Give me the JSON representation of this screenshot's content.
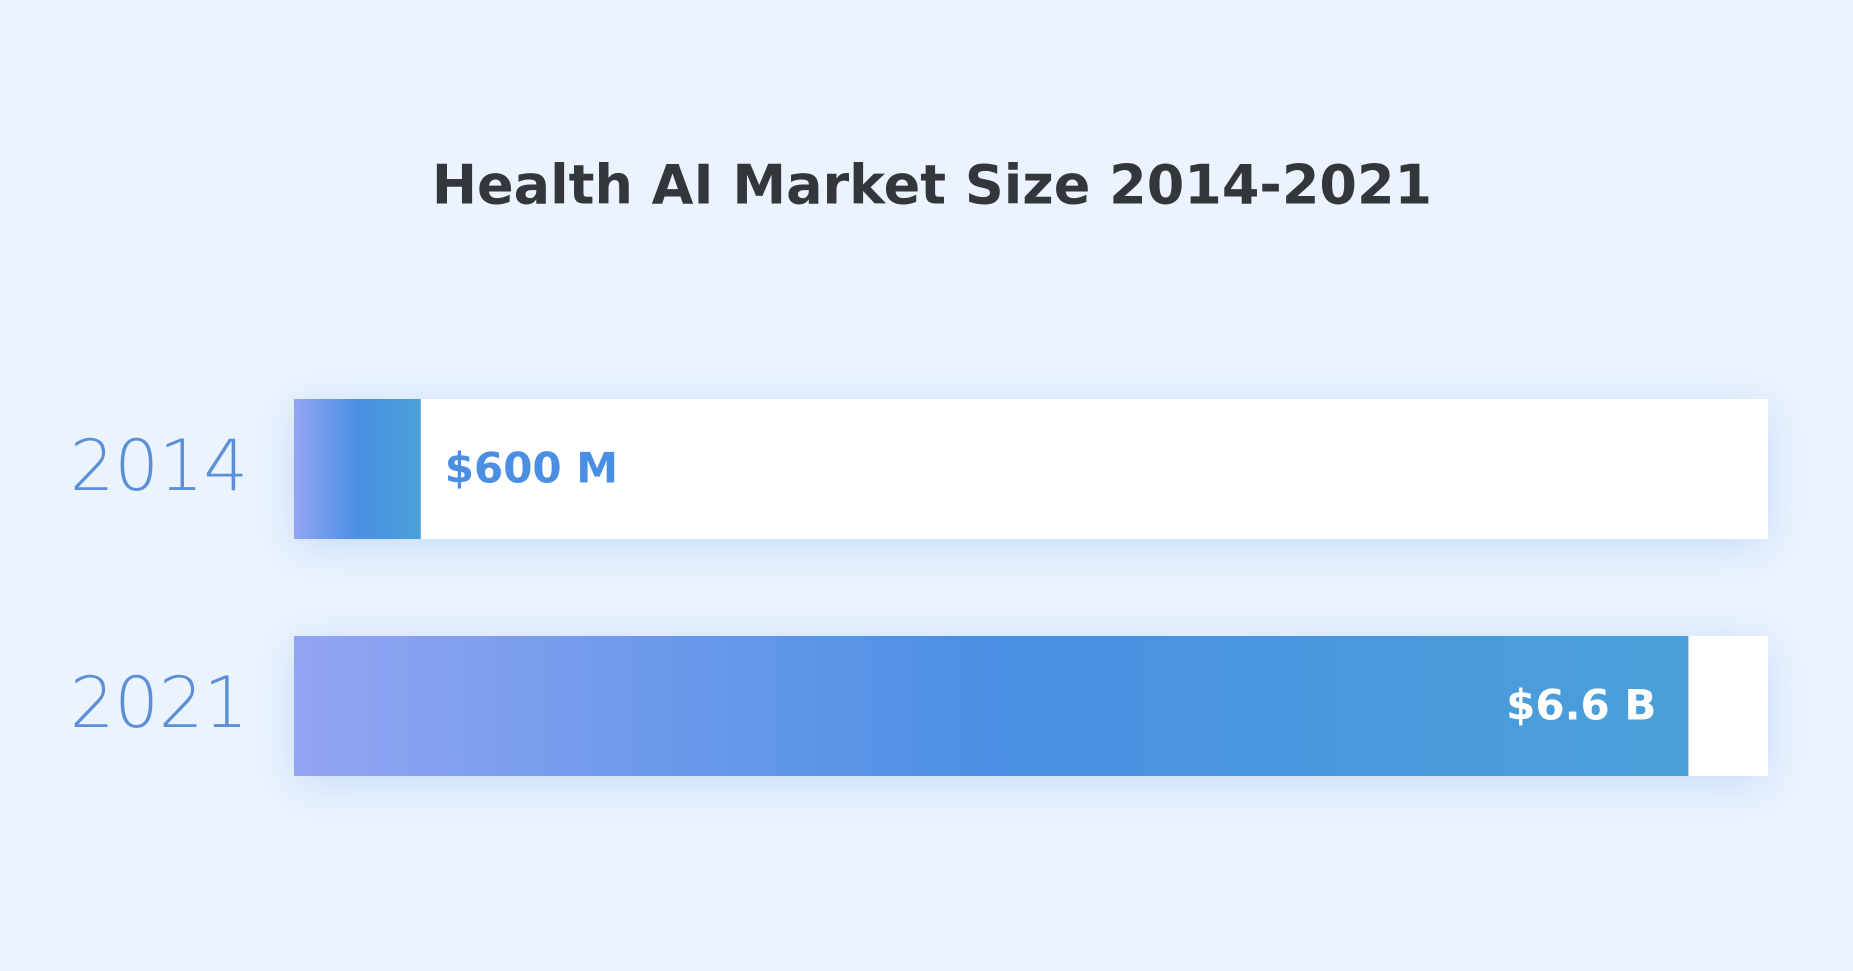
{
  "chart_data": {
    "type": "bar",
    "orientation": "horizontal",
    "title": "Health AI Market Size 2014-2021",
    "categories": [
      "2014",
      "2021"
    ],
    "values": [
      600000000,
      6600000000
    ],
    "value_labels": [
      "$600 M",
      "$6.6 B"
    ],
    "colors": [
      "#93a5f3",
      "#4a8fe3",
      "#4aa0d8"
    ],
    "track_color": "#ffffff",
    "category_color": "#5b8fd6"
  }
}
